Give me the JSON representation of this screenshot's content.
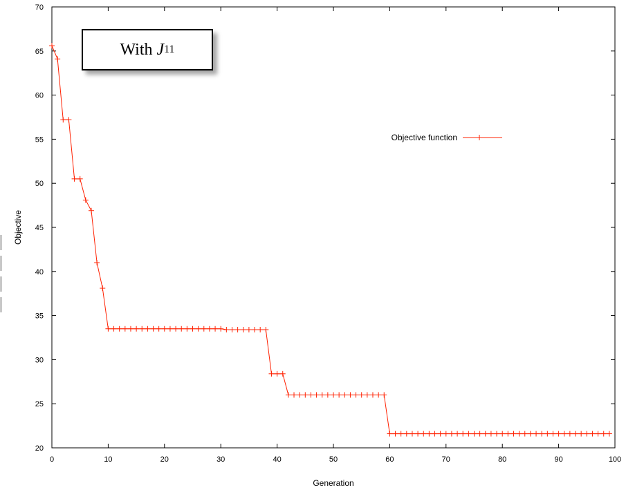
{
  "annotation": {
    "prefix": "With ",
    "symbol": "J",
    "subscript": "11"
  },
  "chart_data": {
    "type": "line",
    "xlabel": "Generation",
    "ylabel": "Objective",
    "xlim": [
      0,
      100
    ],
    "ylim": [
      20,
      70
    ],
    "xticks": [
      0,
      10,
      20,
      30,
      40,
      50,
      60,
      70,
      80,
      90,
      100
    ],
    "yticks": [
      20,
      25,
      30,
      35,
      40,
      45,
      50,
      55,
      60,
      65,
      70
    ],
    "grid": false,
    "legend_position": "upper-right",
    "series": [
      {
        "name": "Objective function",
        "color": "#ff2000",
        "marker": "plus",
        "step": true,
        "x": [
          0,
          1,
          2,
          3,
          4,
          5,
          6,
          7,
          8,
          9,
          10,
          11,
          12,
          13,
          14,
          15,
          16,
          17,
          18,
          19,
          20,
          21,
          22,
          23,
          24,
          25,
          26,
          27,
          28,
          29,
          30,
          31,
          32,
          33,
          34,
          35,
          36,
          37,
          38,
          39,
          40,
          41,
          42,
          43,
          44,
          45,
          46,
          47,
          48,
          49,
          50,
          51,
          52,
          53,
          54,
          55,
          56,
          57,
          58,
          59,
          60,
          61,
          62,
          63,
          64,
          65,
          66,
          67,
          68,
          69,
          70,
          71,
          72,
          73,
          74,
          75,
          76,
          77,
          78,
          79,
          80,
          81,
          82,
          83,
          84,
          85,
          86,
          87,
          88,
          89,
          90,
          91,
          92,
          93,
          94,
          95,
          96,
          97,
          98,
          99
        ],
        "y": [
          65.6,
          64.1,
          57.2,
          57.2,
          50.5,
          50.5,
          48.1,
          46.9,
          41,
          38.1,
          33.5,
          33.5,
          33.5,
          33.5,
          33.5,
          33.5,
          33.5,
          33.5,
          33.5,
          33.5,
          33.5,
          33.5,
          33.5,
          33.5,
          33.5,
          33.5,
          33.5,
          33.5,
          33.5,
          33.5,
          33.5,
          33.4,
          33.4,
          33.4,
          33.4,
          33.4,
          33.4,
          33.4,
          33.4,
          28.4,
          28.4,
          28.4,
          26,
          26,
          26,
          26,
          26,
          26,
          26,
          26,
          26,
          26,
          26,
          26,
          26,
          26,
          26,
          26,
          26,
          26,
          21.6,
          21.6,
          21.6,
          21.6,
          21.6,
          21.6,
          21.6,
          21.6,
          21.6,
          21.6,
          21.6,
          21.6,
          21.6,
          21.6,
          21.6,
          21.6,
          21.6,
          21.6,
          21.6,
          21.6,
          21.6,
          21.6,
          21.6,
          21.6,
          21.6,
          21.6,
          21.6,
          21.6,
          21.6,
          21.6,
          21.6,
          21.6,
          21.6,
          21.6,
          21.6,
          21.6,
          21.6,
          21.6,
          21.6,
          21.6
        ]
      }
    ]
  }
}
